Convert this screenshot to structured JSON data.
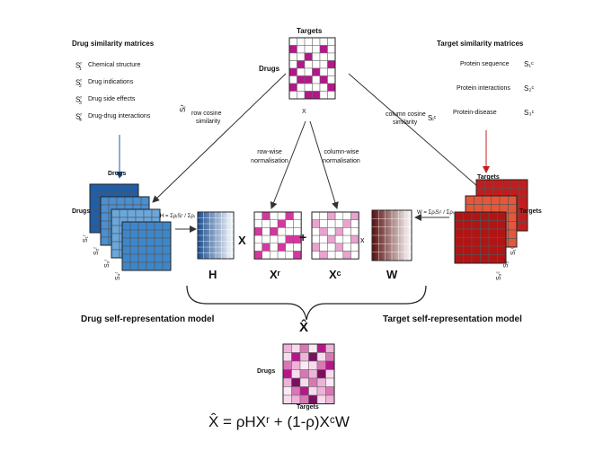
{
  "drug_panel": {
    "heading": "Drug similarity matrices",
    "items": [
      {
        "sym": "S",
        "sub": "1",
        "sup": "r",
        "label": "Chemical structure"
      },
      {
        "sym": "S",
        "sub": "2",
        "sup": "r",
        "label": "Drug indications"
      },
      {
        "sym": "S",
        "sub": "3",
        "sup": "r",
        "label": "Drug side effects"
      },
      {
        "sym": "S",
        "sub": "4",
        "sup": "r",
        "label": "Drug-drug interactions"
      }
    ],
    "stack_label": "Drugs",
    "stack_top_label": "Drugs",
    "stack_symbols": [
      "S₁ʳ",
      "S₂ʳ",
      "S₃ʳ",
      "S₄ʳ"
    ],
    "cosine_symbol": "Sᵢʳ",
    "cosine_label_1": "row cosine",
    "cosine_label_2": "similarity",
    "h_formula": "H = ΣρᵢSᵢʳ / Σρᵢ",
    "model_label": "Drug self-representation model"
  },
  "target_panel": {
    "heading": "Target similarity matrices",
    "items": [
      {
        "label": "Protein sequence",
        "sym": "S₁ᶜ"
      },
      {
        "label": "Protein interactions",
        "sym": "S₂ᶜ"
      },
      {
        "label": "Protein-disease",
        "sym": "S₃ᶜ"
      }
    ],
    "stack_top_label": "Targets",
    "stack_side_label": "Targets",
    "stack_symbols": [
      "S₁ᶜ",
      "S₂ᶜ",
      "S₃ᶜ"
    ],
    "cosine_symbol": "Sᵢᶜ",
    "cosine_label_1": "column cosine",
    "cosine_label_2": "similarity",
    "w_formula": "W = ΣρᵢSᵢᶜ / Σρᵢ",
    "model_label": "Target self-representation model"
  },
  "top_matrix": {
    "col_label": "Targets",
    "row_label": "Drugs",
    "name": "X"
  },
  "normalisation": {
    "row_1": "row-wise",
    "row_2": "normalisation",
    "col_1": "column-wise",
    "col_2": "normalisation"
  },
  "equation_row": {
    "h": "H",
    "times1": "X",
    "xr": "Xʳ",
    "plus": "+",
    "xc": "Xᶜ",
    "times2": "x",
    "w": "W"
  },
  "result": {
    "symbol": "X̂",
    "row_label": "Drugs",
    "col_label": "Targets",
    "formula": "X̂ = ρHXʳ + (1-ρ)XᶜW"
  },
  "colors": {
    "magenta": "#b5178b",
    "pink": "#e9a3cf",
    "blue": "#2f7fc1",
    "red": "#c41c1c"
  }
}
